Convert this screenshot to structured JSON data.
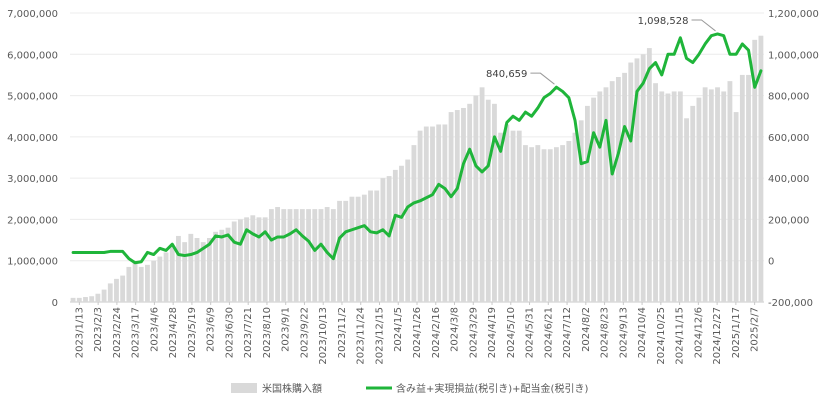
{
  "chart_data": {
    "type": "bar+line",
    "title": "",
    "legend": {
      "placement": "bottom",
      "bar_label": "米国株購入額",
      "line_label": "含み益+実現損益(税引き)+配当金(税引き)"
    },
    "colors": {
      "bar": "#d9d9d9",
      "line": "#1fb53a",
      "axis": "#d0d0d0",
      "text": "#595959"
    },
    "y_left": {
      "min": 0,
      "max": 7000000,
      "ticks": [
        0,
        1000000,
        2000000,
        3000000,
        4000000,
        5000000,
        6000000,
        7000000
      ],
      "tick_labels": [
        "0",
        "1,000,000",
        "2,000,000",
        "3,000,000",
        "4,000,000",
        "5,000,000",
        "6,000,000",
        "7,000,000"
      ]
    },
    "y_right": {
      "min": -200000,
      "max": 1200000,
      "ticks": [
        -200000,
        0,
        200000,
        400000,
        600000,
        800000,
        1000000,
        1200000
      ],
      "tick_labels": [
        "-200,000",
        "0",
        "200,000",
        "400,000",
        "600,000",
        "800,000",
        "1,000,000",
        "1,200,000"
      ]
    },
    "x_tick_labels": [
      "2023/1/13",
      "2023/2/3",
      "2023/2/24",
      "2023/3/17",
      "2023/4/6",
      "2023/4/28",
      "2023/5/19",
      "2023/6/9",
      "2023/6/30",
      "2023/7/21",
      "2023/8/10",
      "2023/9/1",
      "2023/9/22",
      "2023/10/13",
      "2023/11/2",
      "2023/11/24",
      "2023/12/15",
      "2024/1/5",
      "2024/1/26",
      "2024/2/16",
      "2024/3/8",
      "2024/3/29",
      "2024/4/19",
      "2024/5/10",
      "2024/5/31",
      "2024/6/21",
      "2024/7/12",
      "2024/8/2",
      "2024/8/23",
      "2024/9/13",
      "2024/10/4",
      "2024/10/25",
      "2024/11/15",
      "2024/12/6",
      "2024/12/27",
      "2025/1/17",
      "2025/2/7"
    ],
    "bar_values": [
      100000,
      100000,
      120000,
      140000,
      200000,
      300000,
      450000,
      560000,
      640000,
      850000,
      950000,
      850000,
      900000,
      1000000,
      1100000,
      1200000,
      1350000,
      1600000,
      1450000,
      1650000,
      1550000,
      1450000,
      1550000,
      1700000,
      1750000,
      1800000,
      1950000,
      2000000,
      2050000,
      2100000,
      2050000,
      2050000,
      2250000,
      2300000,
      2250000,
      2250000,
      2250000,
      2250000,
      2250000,
      2250000,
      2250000,
      2300000,
      2250000,
      2450000,
      2450000,
      2550000,
      2550000,
      2600000,
      2700000,
      2700000,
      3000000,
      3050000,
      3200000,
      3300000,
      3450000,
      3800000,
      4150000,
      4250000,
      4250000,
      4300000,
      4300000,
      4600000,
      4650000,
      4700000,
      4800000,
      5000000,
      5200000,
      4900000,
      4800000,
      4100000,
      4300000,
      4150000,
      4150000,
      3800000,
      3750000,
      3800000,
      3700000,
      3700000,
      3750000,
      3800000,
      3900000,
      4100000,
      4400000,
      4750000,
      4950000,
      5100000,
      5200000,
      5350000,
      5450000,
      5550000,
      5800000,
      5900000,
      6000000,
      6150000,
      5300000,
      5100000,
      5050000,
      5100000,
      5100000,
      4450000,
      4750000,
      4950000,
      5200000,
      5150000,
      5200000,
      5100000,
      5350000,
      4600000,
      5500000,
      5500000,
      6350000,
      6450000
    ],
    "line_values": [
      40000,
      40000,
      40000,
      40000,
      40000,
      40000,
      45000,
      45000,
      45000,
      10000,
      -10000,
      -5000,
      40000,
      30000,
      60000,
      50000,
      80000,
      30000,
      25000,
      30000,
      40000,
      60000,
      80000,
      120000,
      115000,
      125000,
      90000,
      80000,
      150000,
      130000,
      115000,
      140000,
      100000,
      115000,
      115000,
      130000,
      150000,
      120000,
      95000,
      50000,
      80000,
      40000,
      10000,
      110000,
      140000,
      150000,
      160000,
      170000,
      140000,
      135000,
      150000,
      120000,
      220000,
      210000,
      260000,
      280000,
      290000,
      305000,
      320000,
      370000,
      350000,
      310000,
      350000,
      470000,
      540000,
      460000,
      430000,
      460000,
      600000,
      530000,
      670000,
      700000,
      680000,
      720000,
      700000,
      740000,
      790000,
      810000,
      840659,
      820000,
      790000,
      680000,
      470000,
      480000,
      620000,
      550000,
      680000,
      420000,
      520000,
      650000,
      580000,
      820000,
      860000,
      930000,
      960000,
      900000,
      1000000,
      1000000,
      1080000,
      980000,
      960000,
      1000000,
      1050000,
      1090000,
      1098528,
      1090000,
      1000000,
      1000000,
      1050000,
      1020000,
      840000,
      920000
    ],
    "annotations": [
      {
        "label": "840,659",
        "index": 78
      },
      {
        "label": "1,098,528",
        "index": 104
      }
    ]
  }
}
